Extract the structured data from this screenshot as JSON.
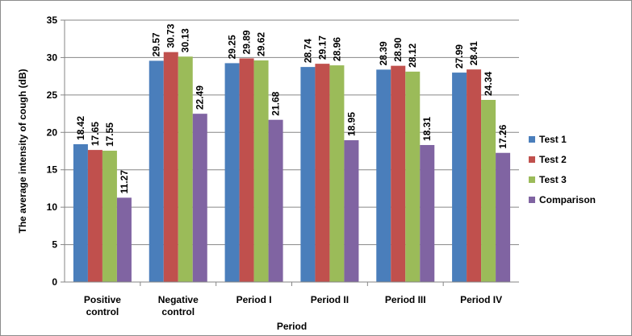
{
  "chart_data": {
    "type": "bar",
    "title": "",
    "xlabel": "Period",
    "ylabel": "The average intensity of cough (dB)",
    "ylim": [
      0,
      35
    ],
    "yticks": [
      0,
      5,
      10,
      15,
      20,
      25,
      30,
      35
    ],
    "grid": "horizontal",
    "legend_position": "right",
    "categories": [
      [
        "Positive",
        "control"
      ],
      [
        "Negative",
        "control"
      ],
      [
        "Period I"
      ],
      [
        "Period II"
      ],
      [
        "Period III"
      ],
      [
        "Period IV"
      ]
    ],
    "series": [
      {
        "name": "Test 1",
        "color": "#4a7ebb",
        "values": [
          18.42,
          29.57,
          29.25,
          28.74,
          28.39,
          27.99
        ],
        "labels": [
          "18.42",
          "29.57",
          "29.25",
          "28.74",
          "28.39",
          "27.99"
        ]
      },
      {
        "name": "Test 2",
        "color": "#c0504d",
        "values": [
          17.65,
          30.73,
          29.89,
          29.17,
          28.9,
          28.41
        ],
        "labels": [
          "17.65",
          "30.73",
          "29.89",
          "29.17",
          "28.90",
          "28.41"
        ]
      },
      {
        "name": "Test 3",
        "color": "#9bbb59",
        "values": [
          17.55,
          30.13,
          29.62,
          28.96,
          28.12,
          24.34
        ],
        "labels": [
          "17.55",
          "30.13",
          "29.62",
          "28.96",
          "28.12",
          "24.34"
        ]
      },
      {
        "name": "Comparison",
        "color": "#8064a2",
        "values": [
          11.27,
          22.49,
          21.68,
          18.95,
          18.31,
          17.26
        ],
        "labels": [
          "11.27",
          "22.49",
          "21.68",
          "18.95",
          "18.31",
          "17.26"
        ]
      }
    ]
  }
}
